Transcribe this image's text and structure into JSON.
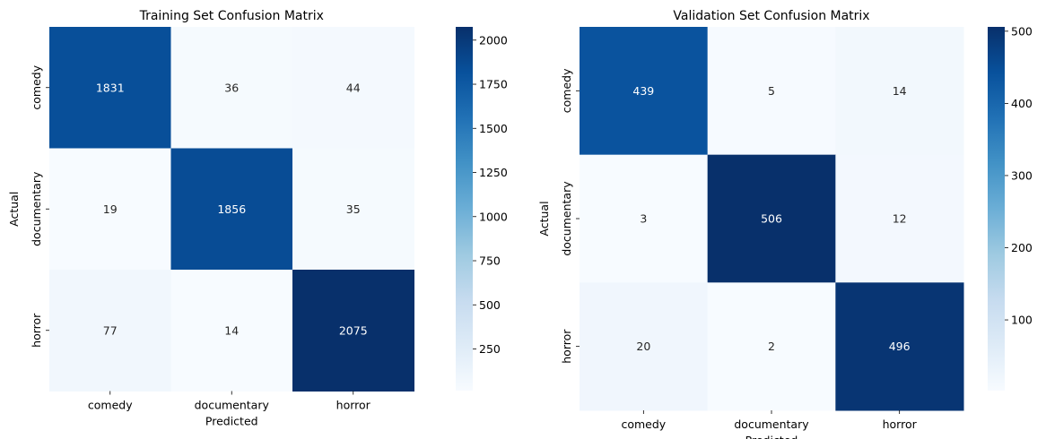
{
  "colors": {
    "cmap_low": "#f7fbff",
    "cmap_high": "#08306b",
    "text_dark": "#262626",
    "text_light": "#ffffff"
  },
  "chart_data": [
    {
      "type": "heatmap",
      "title": "Training Set Confusion Matrix",
      "xlabel": "Predicted",
      "ylabel": "Actual",
      "x_categories": [
        "comedy",
        "documentary",
        "horror"
      ],
      "y_categories": [
        "comedy",
        "documentary",
        "horror"
      ],
      "values": [
        [
          1831,
          36,
          44
        ],
        [
          19,
          1856,
          35
        ],
        [
          77,
          14,
          2075
        ]
      ],
      "colorbar": {
        "min": 14,
        "max": 2075,
        "ticks": [
          250,
          500,
          750,
          1000,
          1250,
          1500,
          1750,
          2000
        ]
      },
      "colormap": "Blues"
    },
    {
      "type": "heatmap",
      "title": "Validation Set Confusion Matrix",
      "xlabel": "Predicted",
      "ylabel": "Actual",
      "x_categories": [
        "comedy",
        "documentary",
        "horror"
      ],
      "y_categories": [
        "comedy",
        "documentary",
        "horror"
      ],
      "values": [
        [
          439,
          5,
          14
        ],
        [
          3,
          506,
          12
        ],
        [
          20,
          2,
          496
        ]
      ],
      "colorbar": {
        "min": 2,
        "max": 506,
        "ticks": [
          100,
          200,
          300,
          400,
          500
        ]
      },
      "colormap": "Blues"
    }
  ]
}
